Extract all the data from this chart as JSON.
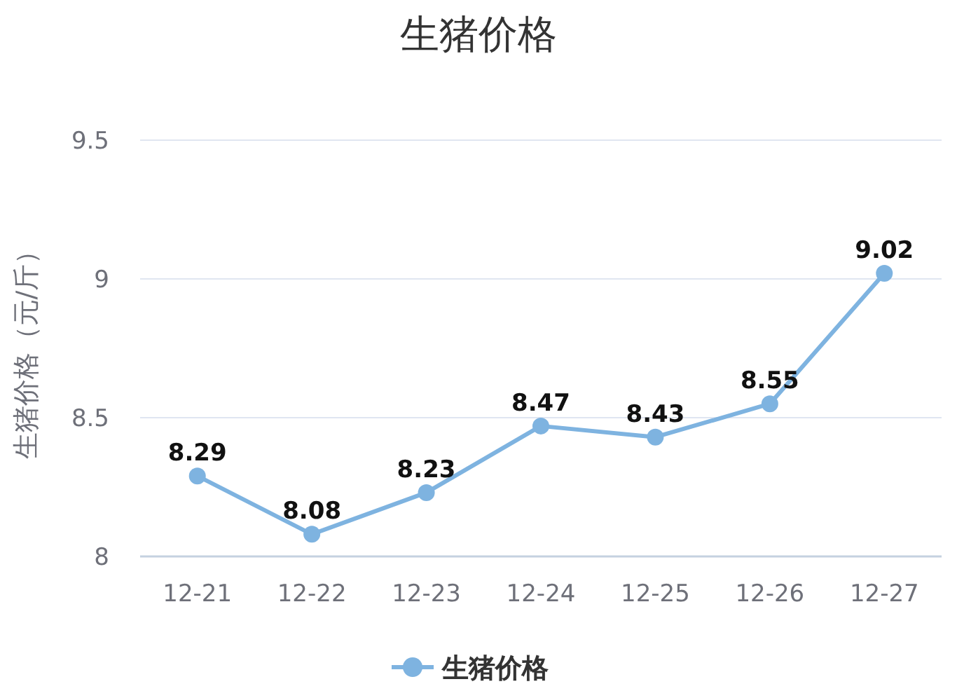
{
  "chart_data": {
    "type": "line",
    "title": "生猪价格",
    "ylabel": "生猪价格（元/斤）",
    "categories": [
      "12-21",
      "12-22",
      "12-23",
      "12-24",
      "12-25",
      "12-26",
      "12-27"
    ],
    "series": [
      {
        "name": "生猪价格",
        "color": "#7eb3e0",
        "values": [
          8.29,
          8.08,
          8.23,
          8.47,
          8.43,
          8.55,
          9.02
        ]
      }
    ],
    "ylim": [
      8,
      9.5
    ],
    "yticks": [
      8,
      8.5,
      9,
      9.5
    ],
    "grid": "y",
    "legend": "bottom",
    "marker": "circle",
    "data_labels": true
  }
}
